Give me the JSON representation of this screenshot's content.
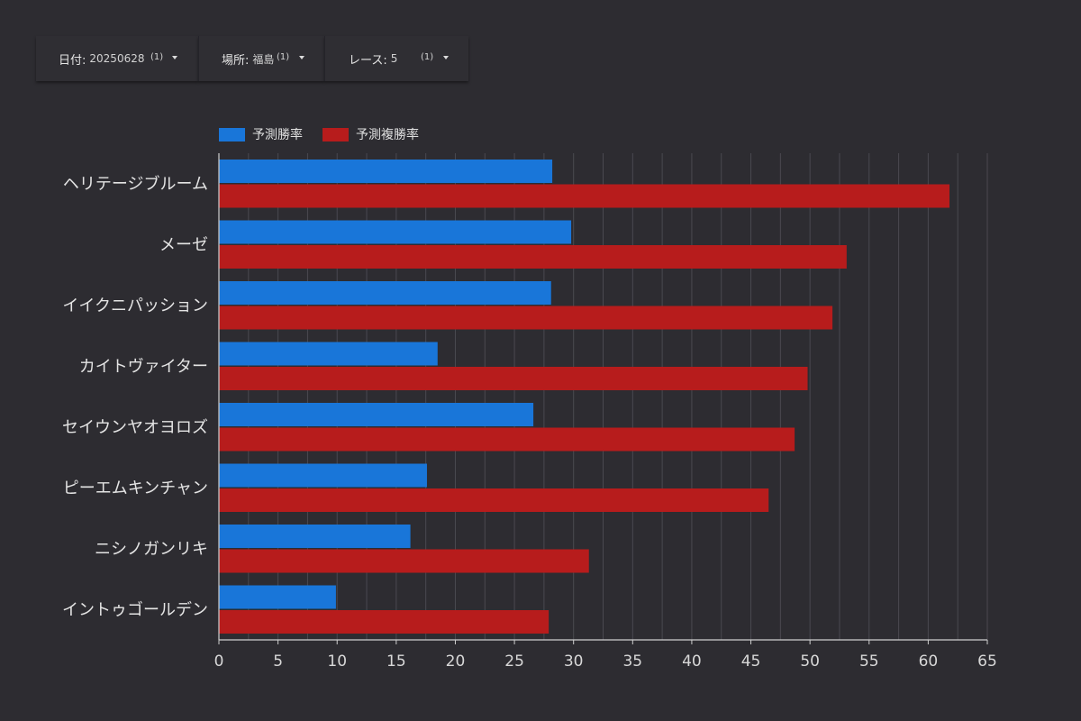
{
  "filters": [
    {
      "label": "日付",
      "value": "20250628",
      "count": "(1)"
    },
    {
      "label": "場所",
      "value": "福島",
      "count": "(1)"
    },
    {
      "label": "レース",
      "value": "5",
      "count": "(1)"
    }
  ],
  "colors": {
    "background": "#2d2c31",
    "grid": "#4a4950",
    "axis": "#cfcfcf",
    "series_blue": "#1976d9",
    "series_red": "#b71c1c"
  },
  "chart_data": {
    "type": "bar",
    "orientation": "horizontal",
    "categories": [
      "ヘリテージブルーム",
      "メーゼ",
      "イイクニパッション",
      "カイトヴァイター",
      "セイウンヤオヨロズ",
      "ピーエムキンチャン",
      "ニシノガンリキ",
      "イントゥゴールデン"
    ],
    "series": [
      {
        "name": "予測勝率",
        "color": "#1976d9",
        "values": [
          28.2,
          29.8,
          28.1,
          18.5,
          26.6,
          17.6,
          16.2,
          9.9
        ]
      },
      {
        "name": "予測複勝率",
        "color": "#b71c1c",
        "values": [
          61.8,
          53.1,
          51.9,
          49.8,
          48.7,
          46.5,
          31.3,
          27.9
        ]
      }
    ],
    "xlim": [
      0,
      65
    ],
    "xticks": [
      "0",
      "5",
      "10",
      "15",
      "20",
      "25",
      "30",
      "35",
      "40",
      "45",
      "50",
      "55",
      "60",
      "65"
    ],
    "grid": true,
    "legend": "top-left"
  }
}
